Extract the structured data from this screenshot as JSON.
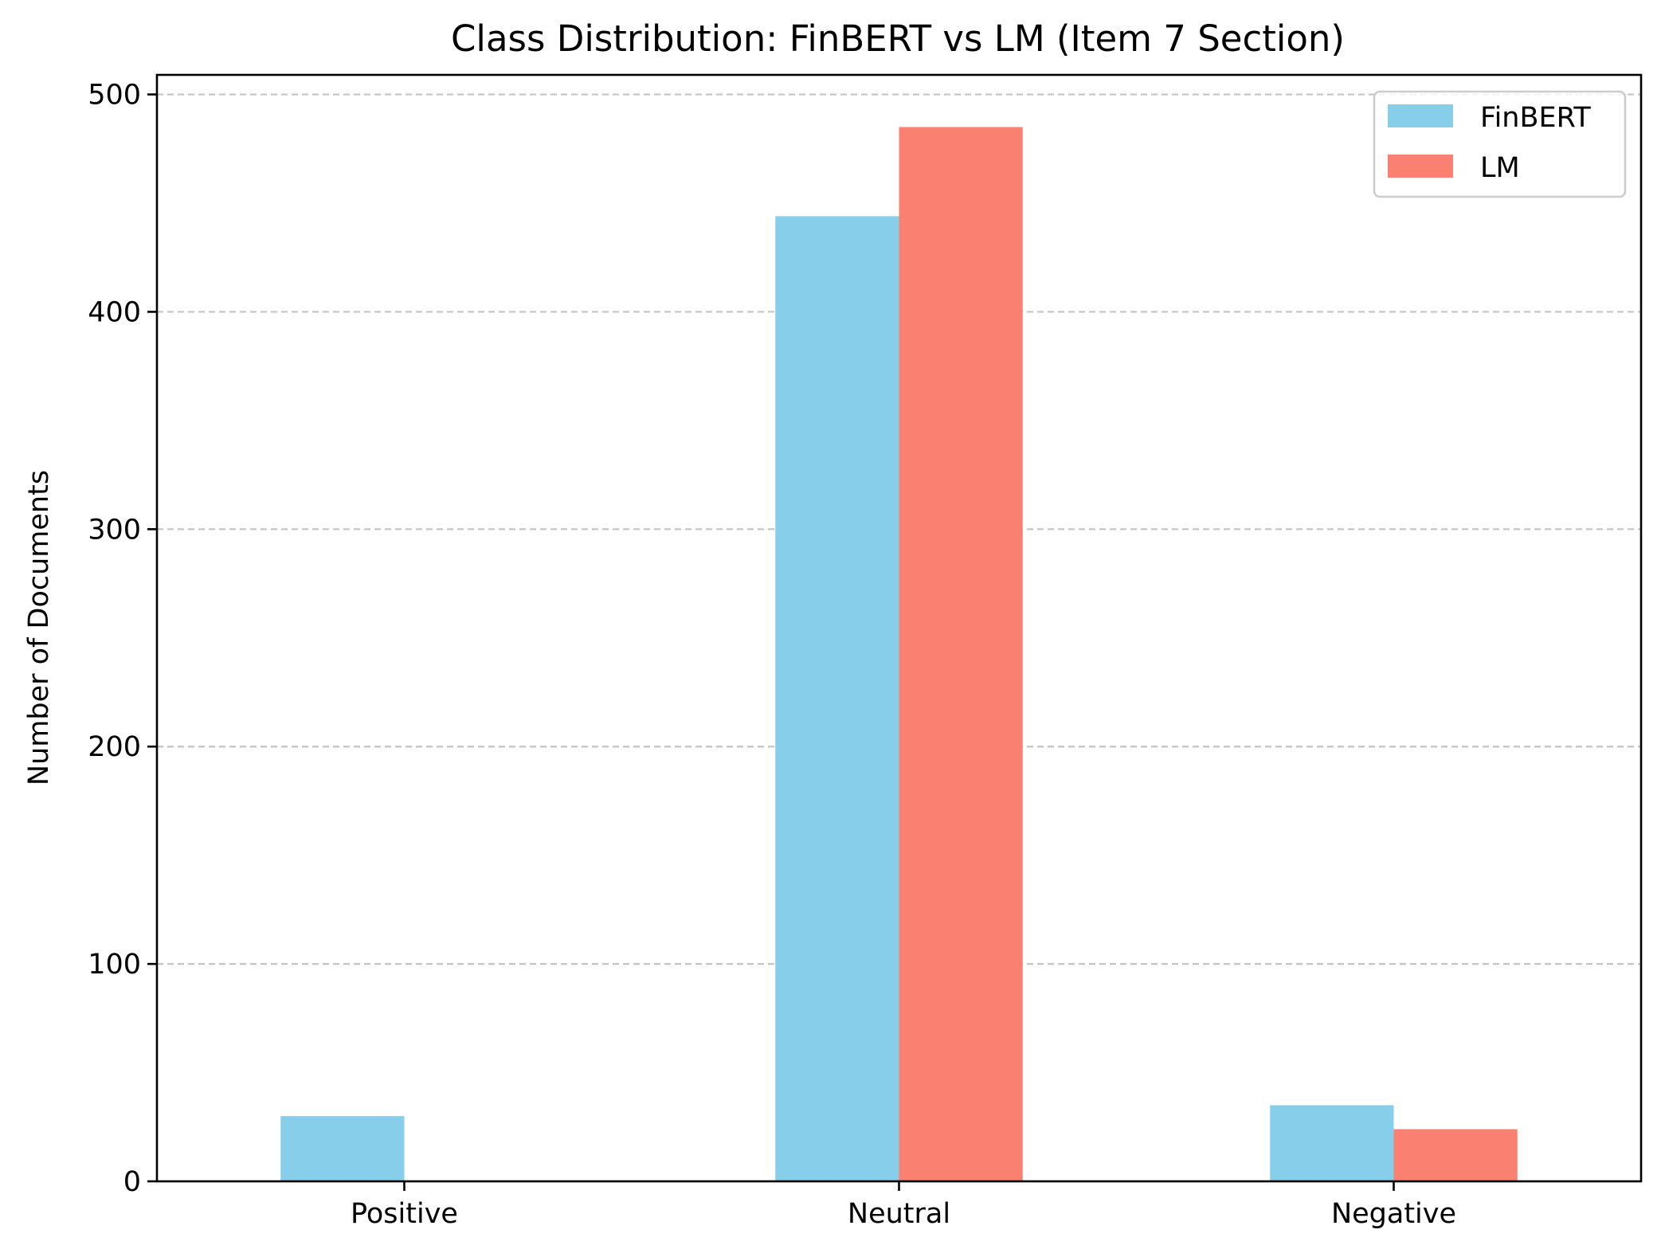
{
  "chart_data": {
    "type": "bar",
    "title": "Class Distribution: FinBERT vs LM (Item 7 Section)",
    "xlabel": "",
    "ylabel": "Number of Documents",
    "categories": [
      "Positive",
      "Neutral",
      "Negative"
    ],
    "series": [
      {
        "name": "FinBERT",
        "color": "#87CEEB",
        "values": [
          30,
          444,
          35
        ]
      },
      {
        "name": "LM",
        "color": "#FA8072",
        "values": [
          0,
          485,
          24
        ]
      }
    ],
    "ylim": [
      0,
      509
    ],
    "yticks": [
      0,
      100,
      200,
      300,
      400,
      500
    ],
    "ytick_labels": [
      "0",
      "100",
      "200",
      "300",
      "400",
      "500"
    ],
    "grid": {
      "axis": "y",
      "style": "dashed",
      "color": "#c4c4c4"
    },
    "legend_position": "top-right"
  }
}
